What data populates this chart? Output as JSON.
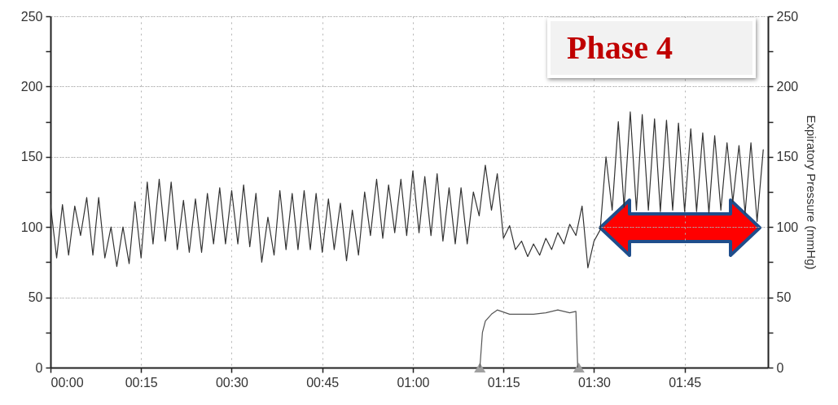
{
  "chart_data": {
    "type": "line",
    "y2label": "Expiratory Pressure (mmHg)",
    "annotations": [
      "Phase 4"
    ],
    "xlim": [
      0,
      1.98
    ],
    "xticks": [
      {
        "value": 0,
        "label": "00:00"
      },
      {
        "value": 0.25,
        "label": "00:15"
      },
      {
        "value": 0.5,
        "label": "00:30"
      },
      {
        "value": 0.75,
        "label": "00:45"
      },
      {
        "value": 1,
        "label": "01:00"
      },
      {
        "value": 1.25,
        "label": "01:15"
      },
      {
        "value": 1.5,
        "label": "01:30"
      },
      {
        "value": 1.75,
        "label": "01:45"
      }
    ],
    "ylim": [
      0,
      250
    ],
    "yticks": [
      0,
      {
        "value": 25,
        "label": null
      },
      50,
      {
        "value": 75,
        "label": null
      },
      100,
      {
        "value": 125,
        "label": null
      },
      150,
      {
        "value": 175,
        "label": null
      },
      200,
      {
        "value": 225,
        "label": null
      },
      250
    ],
    "y2lim": [
      0,
      250
    ],
    "y2ticks": [
      0,
      {
        "value": 25,
        "label": null
      },
      50,
      {
        "value": 75,
        "label": null
      },
      100,
      {
        "value": 125,
        "label": null
      },
      150,
      {
        "value": 175,
        "label": null
      },
      200,
      {
        "value": 225,
        "label": null
      },
      250
    ],
    "grid": true,
    "series": [
      {
        "color": "#333333",
        "x": [
          0,
          0.017,
          0.033,
          0.05,
          0.067,
          0.083,
          0.1,
          0.117,
          0.133,
          0.15,
          0.167,
          0.183,
          0.2,
          0.217,
          0.233,
          0.25,
          0.267,
          0.283,
          0.3,
          0.317,
          0.333,
          0.35,
          0.367,
          0.383,
          0.4,
          0.417,
          0.433,
          0.45,
          0.467,
          0.483,
          0.5,
          0.517,
          0.533,
          0.55,
          0.567,
          0.583,
          0.6,
          0.617,
          0.633,
          0.65,
          0.667,
          0.683,
          0.7,
          0.717,
          0.733,
          0.75,
          0.767,
          0.783,
          0.8,
          0.817,
          0.833,
          0.85,
          0.867,
          0.883,
          0.9,
          0.917,
          0.933,
          0.95,
          0.967,
          0.983,
          1,
          1.017,
          1.033,
          1.05,
          1.067,
          1.083,
          1.1,
          1.117,
          1.133,
          1.15,
          1.167,
          1.183,
          1.2,
          1.217,
          1.233,
          1.25,
          1.267,
          1.283,
          1.3,
          1.317,
          1.333,
          1.35,
          1.367,
          1.383,
          1.4,
          1.417,
          1.433,
          1.45,
          1.467,
          1.483,
          1.5,
          1.517,
          1.533,
          1.55,
          1.567,
          1.583,
          1.6,
          1.617,
          1.633,
          1.65,
          1.667,
          1.683,
          1.7,
          1.717,
          1.733,
          1.75,
          1.767,
          1.783,
          1.8,
          1.817,
          1.833,
          1.85,
          1.867,
          1.883,
          1.9,
          1.917,
          1.933,
          1.95,
          1.967
        ],
        "values": [
          116,
          78,
          116,
          80,
          115,
          94,
          121,
          80,
          121,
          78,
          100,
          72,
          100,
          74,
          118,
          78,
          132,
          88,
          134,
          90,
          132,
          84,
          119,
          82,
          120,
          82,
          124,
          88,
          128,
          88,
          126,
          88,
          130,
          86,
          124,
          75,
          107,
          80,
          126,
          84,
          124,
          84,
          126,
          84,
          124,
          82,
          120,
          84,
          117,
          76,
          112,
          80,
          125,
          94,
          134,
          92,
          130,
          96,
          134,
          94,
          140,
          96,
          136,
          94,
          138,
          90,
          128,
          88,
          128,
          88,
          125,
          108,
          144,
          112,
          138,
          92,
          101,
          84,
          90,
          79,
          88,
          80,
          92,
          84,
          96,
          88,
          102,
          94,
          115,
          71,
          90,
          98,
          150,
          112,
          175,
          114,
          182,
          112,
          180,
          112,
          177,
          111,
          176,
          112,
          174,
          111,
          170,
          111,
          167,
          110,
          165,
          112,
          160,
          118,
          158,
          110,
          160,
          104,
          155
        ]
      },
      {
        "type": "line",
        "axis": "y2",
        "color": "#555555",
        "x": [
          1.185,
          1.192,
          1.2,
          1.217,
          1.233,
          1.267,
          1.3,
          1.333,
          1.367,
          1.4,
          1.433,
          1.45,
          1.455
        ],
        "values": [
          0,
          25,
          33,
          38,
          41,
          38,
          38,
          38,
          39,
          41,
          39,
          40,
          0
        ]
      },
      {
        "type": "scatter",
        "marker": "triangle",
        "color": "#a0a0a0",
        "x": [
          1.185,
          1.458
        ],
        "values": [
          0,
          0
        ]
      }
    ]
  }
}
